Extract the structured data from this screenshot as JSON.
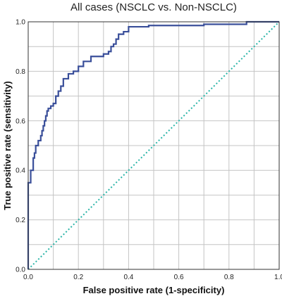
{
  "chart_data": {
    "type": "line",
    "title": "All cases (NSCLC vs. Non-NSCLC)",
    "xlabel": "False positive rate (1-specificity)",
    "ylabel": "True positive rate (sensitivity)",
    "xlim": [
      0,
      1
    ],
    "ylim": [
      0,
      1
    ],
    "x_ticks": [
      "0.0",
      "0.2",
      "0.4",
      "0.6",
      "0.8",
      "1.0"
    ],
    "y_ticks": [
      "0.0",
      "0.2",
      "0.4",
      "0.6",
      "0.8",
      "1.0"
    ],
    "grid": true,
    "legend": "none",
    "series": [
      {
        "style": "solid",
        "color": "#3a4f9a",
        "x": [
          0.0,
          0.0,
          0.01,
          0.01,
          0.02,
          0.02,
          0.025,
          0.025,
          0.03,
          0.03,
          0.04,
          0.04,
          0.05,
          0.05,
          0.055,
          0.055,
          0.06,
          0.06,
          0.065,
          0.065,
          0.07,
          0.07,
          0.075,
          0.075,
          0.08,
          0.08,
          0.09,
          0.09,
          0.1,
          0.1,
          0.11,
          0.11,
          0.12,
          0.12,
          0.13,
          0.13,
          0.14,
          0.14,
          0.16,
          0.16,
          0.18,
          0.18,
          0.2,
          0.2,
          0.22,
          0.22,
          0.25,
          0.25,
          0.3,
          0.3,
          0.32,
          0.32,
          0.33,
          0.33,
          0.34,
          0.34,
          0.35,
          0.35,
          0.36,
          0.36,
          0.38,
          0.38,
          0.4,
          0.4,
          0.48,
          0.48,
          0.7,
          0.7,
          0.87,
          0.87,
          1.0
        ],
        "y": [
          0.0,
          0.35,
          0.35,
          0.4,
          0.4,
          0.45,
          0.45,
          0.47,
          0.47,
          0.5,
          0.5,
          0.52,
          0.52,
          0.54,
          0.54,
          0.56,
          0.56,
          0.58,
          0.58,
          0.6,
          0.6,
          0.62,
          0.62,
          0.64,
          0.64,
          0.65,
          0.65,
          0.66,
          0.66,
          0.67,
          0.67,
          0.7,
          0.7,
          0.72,
          0.72,
          0.74,
          0.74,
          0.77,
          0.77,
          0.79,
          0.79,
          0.8,
          0.8,
          0.82,
          0.82,
          0.84,
          0.84,
          0.86,
          0.86,
          0.87,
          0.87,
          0.88,
          0.88,
          0.9,
          0.9,
          0.91,
          0.91,
          0.93,
          0.93,
          0.95,
          0.95,
          0.96,
          0.96,
          0.98,
          0.98,
          0.985,
          0.985,
          0.99,
          0.99,
          1.0,
          1.0
        ]
      },
      {
        "style": "dotted",
        "color": "#2bb5a8",
        "x": [
          0,
          1
        ],
        "y": [
          0,
          1
        ]
      }
    ]
  }
}
